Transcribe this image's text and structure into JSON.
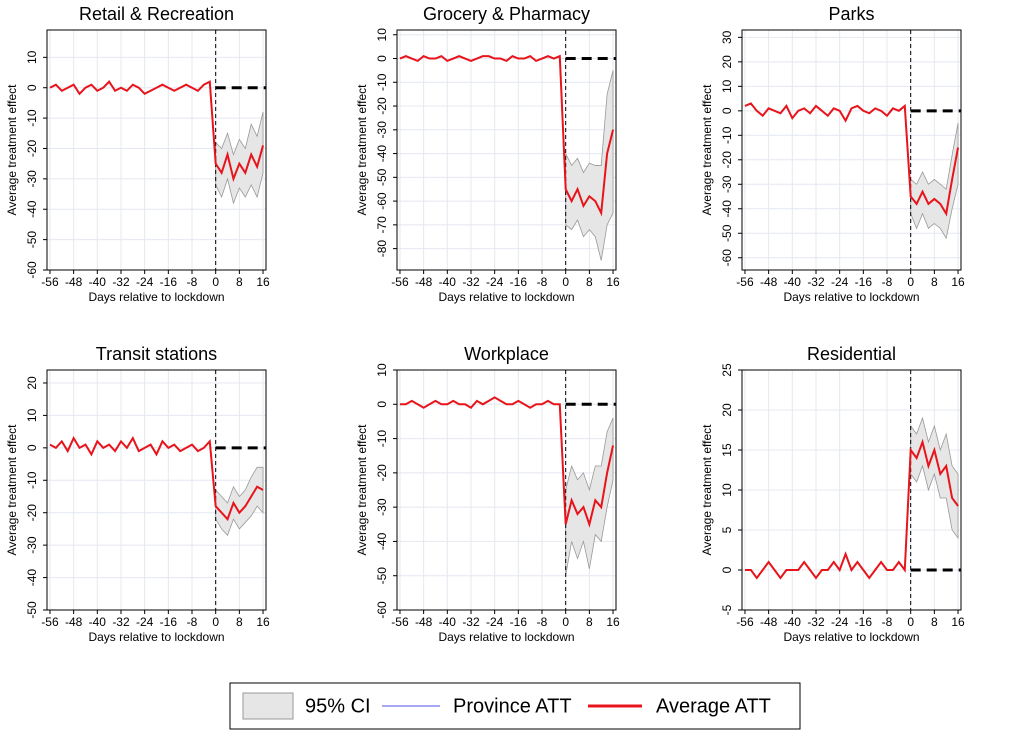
{
  "chart_data": [
    {
      "type": "line",
      "title": "Retail & Recreation",
      "x_label": "Days relative to lockdown",
      "y_label": "Average treatment effect",
      "x": [
        -56,
        -54,
        -52,
        -50,
        -48,
        -46,
        -44,
        -42,
        -40,
        -38,
        -36,
        -34,
        -32,
        -30,
        -28,
        -26,
        -24,
        -22,
        -20,
        -18,
        -16,
        -14,
        -12,
        -10,
        -8,
        -6,
        -4,
        -2,
        0,
        2,
        4,
        6,
        8,
        10,
        12,
        14,
        16
      ],
      "xlim": [
        -57,
        17
      ],
      "xticks": [
        -56,
        -48,
        -40,
        -32,
        -24,
        -16,
        -8,
        0,
        8,
        16
      ],
      "ylim": [
        -60,
        19
      ],
      "yticks": [
        -60,
        -50,
        -40,
        -30,
        -20,
        -10,
        0,
        10
      ],
      "grid": true,
      "series": [
        {
          "color": "#e8141b",
          "values": [
            0,
            1,
            -1,
            0,
            1,
            -2,
            0,
            1,
            -1,
            0,
            2,
            -1,
            0,
            -1,
            1,
            0,
            -2,
            -1,
            0,
            1,
            0,
            -1,
            0,
            1,
            0,
            -1,
            1,
            2,
            -25,
            -28,
            -22,
            -30,
            -25,
            -28,
            -22,
            -26,
            -19
          ]
        }
      ],
      "ci": {
        "color": "#e6e6e6",
        "x": [
          0,
          2,
          4,
          6,
          8,
          10,
          12,
          14,
          16
        ],
        "lower": [
          -32,
          -36,
          -30,
          -38,
          -33,
          -36,
          -32,
          -36,
          -28
        ],
        "upper": [
          -18,
          -20,
          -15,
          -22,
          -17,
          -20,
          -12,
          -16,
          -8
        ]
      }
    },
    {
      "type": "line",
      "title": "Grocery & Pharmacy",
      "x_label": "Days relative to lockdown",
      "y_label": "Average treatment effect",
      "x": [
        -56,
        -54,
        -52,
        -50,
        -48,
        -46,
        -44,
        -42,
        -40,
        -38,
        -36,
        -34,
        -32,
        -30,
        -28,
        -26,
        -24,
        -22,
        -20,
        -18,
        -16,
        -14,
        -12,
        -10,
        -8,
        -6,
        -4,
        -2,
        0,
        2,
        4,
        6,
        8,
        10,
        12,
        14,
        16
      ],
      "xlim": [
        -57,
        17
      ],
      "xticks": [
        -56,
        -48,
        -40,
        -32,
        -24,
        -16,
        -8,
        0,
        8,
        16
      ],
      "ylim": [
        -89,
        12
      ],
      "yticks": [
        -80,
        -70,
        -60,
        -50,
        -40,
        -30,
        -20,
        -10,
        0,
        10
      ],
      "grid": true,
      "series": [
        {
          "color": "#e8141b",
          "values": [
            0,
            1,
            0,
            -1,
            1,
            0,
            0,
            1,
            -1,
            0,
            1,
            0,
            -1,
            0,
            1,
            1,
            0,
            0,
            -1,
            1,
            0,
            0,
            1,
            -1,
            0,
            1,
            0,
            1,
            -55,
            -60,
            -55,
            -62,
            -58,
            -60,
            -65,
            -40,
            -30
          ]
        }
      ],
      "ci": {
        "color": "#e6e6e6",
        "x": [
          0,
          2,
          4,
          6,
          8,
          10,
          12,
          14,
          16
        ],
        "lower": [
          -70,
          -72,
          -68,
          -75,
          -72,
          -75,
          -85,
          -70,
          -65
        ],
        "upper": [
          -40,
          -45,
          -42,
          -48,
          -44,
          -45,
          -45,
          -15,
          -5
        ]
      }
    },
    {
      "type": "line",
      "title": "Parks",
      "x_label": "Days relative to lockdown",
      "y_label": "Average treatment effect",
      "x": [
        -56,
        -54,
        -52,
        -50,
        -48,
        -46,
        -44,
        -42,
        -40,
        -38,
        -36,
        -34,
        -32,
        -30,
        -28,
        -26,
        -24,
        -22,
        -20,
        -18,
        -16,
        -14,
        -12,
        -10,
        -8,
        -6,
        -4,
        -2,
        0,
        2,
        4,
        6,
        8,
        10,
        12,
        14,
        16
      ],
      "xlim": [
        -57,
        17
      ],
      "xticks": [
        -56,
        -48,
        -40,
        -32,
        -24,
        -16,
        -8,
        0,
        8,
        16
      ],
      "ylim": [
        -65,
        33
      ],
      "yticks": [
        -60,
        -50,
        -40,
        -30,
        -20,
        -10,
        0,
        10,
        20,
        30
      ],
      "grid": true,
      "series": [
        {
          "color": "#e8141b",
          "values": [
            2,
            3,
            0,
            -2,
            1,
            0,
            -1,
            2,
            -3,
            0,
            1,
            -1,
            2,
            0,
            -2,
            1,
            0,
            -4,
            1,
            2,
            0,
            -1,
            1,
            0,
            -2,
            1,
            0,
            2,
            -35,
            -38,
            -33,
            -38,
            -36,
            -38,
            -42,
            -28,
            -15
          ]
        }
      ],
      "ci": {
        "color": "#e6e6e6",
        "x": [
          0,
          2,
          4,
          6,
          8,
          10,
          12,
          14,
          16
        ],
        "lower": [
          -42,
          -48,
          -42,
          -48,
          -46,
          -48,
          -52,
          -40,
          -30
        ],
        "upper": [
          -28,
          -30,
          -25,
          -30,
          -28,
          -30,
          -32,
          -18,
          -5
        ]
      }
    },
    {
      "type": "line",
      "title": "Transit stations",
      "x_label": "Days relative to lockdown",
      "y_label": "Average treatment effect",
      "x": [
        -56,
        -54,
        -52,
        -50,
        -48,
        -46,
        -44,
        -42,
        -40,
        -38,
        -36,
        -34,
        -32,
        -30,
        -28,
        -26,
        -24,
        -22,
        -20,
        -18,
        -16,
        -14,
        -12,
        -10,
        -8,
        -6,
        -4,
        -2,
        0,
        2,
        4,
        6,
        8,
        10,
        12,
        14,
        16
      ],
      "xlim": [
        -57,
        17
      ],
      "xticks": [
        -56,
        -48,
        -40,
        -32,
        -24,
        -16,
        -8,
        0,
        8,
        16
      ],
      "ylim": [
        -50,
        24
      ],
      "yticks": [
        -50,
        -40,
        -30,
        -20,
        -10,
        0,
        10,
        20
      ],
      "grid": true,
      "series": [
        {
          "color": "#e8141b",
          "values": [
            1,
            0,
            2,
            -1,
            3,
            0,
            1,
            -2,
            2,
            0,
            1,
            -1,
            2,
            0,
            3,
            -1,
            0,
            1,
            -2,
            2,
            0,
            1,
            -1,
            0,
            1,
            -1,
            0,
            2,
            -18,
            -20,
            -22,
            -17,
            -20,
            -18,
            -15,
            -12,
            -13
          ]
        }
      ],
      "ci": {
        "color": "#e6e6e6",
        "x": [
          0,
          2,
          4,
          6,
          8,
          10,
          12,
          14,
          16
        ],
        "lower": [
          -22,
          -25,
          -27,
          -22,
          -25,
          -23,
          -21,
          -18,
          -20
        ],
        "upper": [
          -13,
          -15,
          -17,
          -12,
          -15,
          -13,
          -9,
          -6,
          -6
        ]
      }
    },
    {
      "type": "line",
      "title": "Workplace",
      "x_label": "Days relative to lockdown",
      "y_label": "Average treatment effect",
      "x": [
        -56,
        -54,
        -52,
        -50,
        -48,
        -46,
        -44,
        -42,
        -40,
        -38,
        -36,
        -34,
        -32,
        -30,
        -28,
        -26,
        -24,
        -22,
        -20,
        -18,
        -16,
        -14,
        -12,
        -10,
        -8,
        -6,
        -4,
        -2,
        0,
        2,
        4,
        6,
        8,
        10,
        12,
        14,
        16
      ],
      "xlim": [
        -57,
        17
      ],
      "xticks": [
        -56,
        -48,
        -40,
        -32,
        -24,
        -16,
        -8,
        0,
        8,
        16
      ],
      "ylim": [
        -60,
        10
      ],
      "yticks": [
        -60,
        -50,
        -40,
        -30,
        -20,
        -10,
        0,
        10
      ],
      "grid": true,
      "series": [
        {
          "color": "#e8141b",
          "values": [
            0,
            0,
            1,
            0,
            -1,
            0,
            1,
            0,
            0,
            1,
            0,
            0,
            -1,
            1,
            0,
            1,
            2,
            1,
            0,
            0,
            1,
            0,
            -1,
            0,
            0,
            1,
            0,
            0,
            -35,
            -28,
            -32,
            -30,
            -35,
            -28,
            -30,
            -20,
            -12
          ]
        }
      ],
      "ci": {
        "color": "#e6e6e6",
        "x": [
          0,
          2,
          4,
          6,
          8,
          10,
          12,
          14,
          16
        ],
        "lower": [
          -50,
          -40,
          -45,
          -40,
          -48,
          -38,
          -40,
          -30,
          -22
        ],
        "upper": [
          -25,
          -18,
          -22,
          -20,
          -25,
          -18,
          -18,
          -8,
          -4
        ]
      }
    },
    {
      "type": "line",
      "title": "Residential",
      "x_label": "Days relative to lockdown",
      "y_label": "Average treatment effect",
      "x": [
        -56,
        -54,
        -52,
        -50,
        -48,
        -46,
        -44,
        -42,
        -40,
        -38,
        -36,
        -34,
        -32,
        -30,
        -28,
        -26,
        -24,
        -22,
        -20,
        -18,
        -16,
        -14,
        -12,
        -10,
        -8,
        -6,
        -4,
        -2,
        0,
        2,
        4,
        6,
        8,
        10,
        12,
        14,
        16
      ],
      "xlim": [
        -57,
        17
      ],
      "xticks": [
        -56,
        -48,
        -40,
        -32,
        -24,
        -16,
        -8,
        0,
        8,
        16
      ],
      "ylim": [
        -5,
        25
      ],
      "yticks": [
        -5,
        0,
        5,
        10,
        15,
        20,
        25
      ],
      "grid": true,
      "series": [
        {
          "color": "#e8141b",
          "values": [
            0,
            0,
            -1,
            0,
            1,
            0,
            -1,
            0,
            0,
            0,
            1,
            0,
            -1,
            0,
            0,
            1,
            0,
            2,
            0,
            1,
            0,
            -1,
            0,
            1,
            0,
            0,
            1,
            0,
            15,
            14,
            16,
            13,
            15,
            12,
            13,
            9,
            8
          ]
        }
      ],
      "ci": {
        "color": "#e6e6e6",
        "x": [
          0,
          2,
          4,
          6,
          8,
          10,
          12,
          14,
          16
        ],
        "lower": [
          12,
          11,
          13,
          10,
          12,
          9,
          9,
          5,
          4
        ],
        "upper": [
          18,
          17,
          19,
          16,
          18,
          15,
          17,
          13,
          12
        ]
      }
    }
  ],
  "legend": [
    {
      "label": "95% CI",
      "color": "#e6e6e6"
    },
    {
      "label": "Province ATT",
      "color": "#a8a8f4"
    },
    {
      "label": "Average ATT",
      "color": "#e8141b"
    }
  ]
}
